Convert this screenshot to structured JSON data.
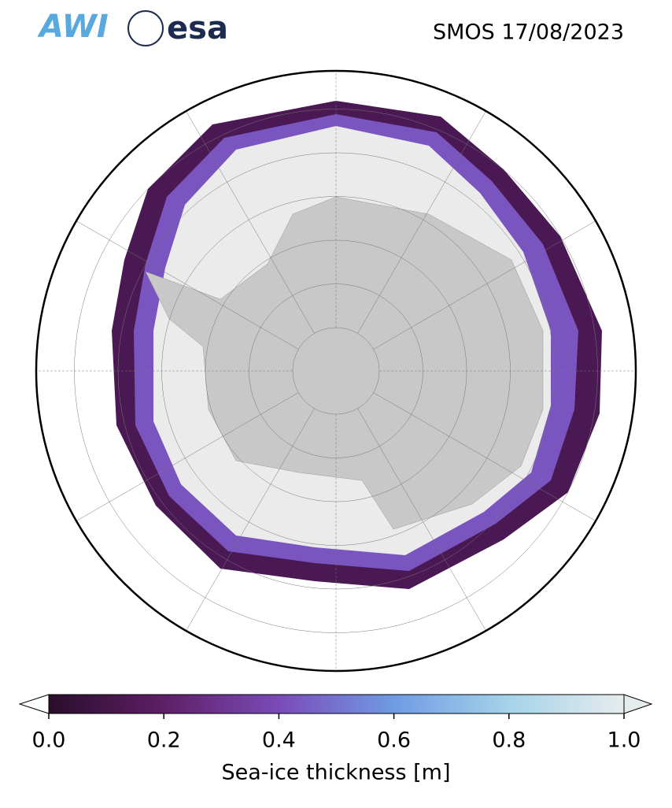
{
  "header": {
    "logos": [
      "AWI",
      "esa"
    ],
    "title": "SMOS 17/08/2023"
  },
  "colorbar": {
    "label": "Sea-ice thickness [m]",
    "lim": [
      0,
      1
    ],
    "ticks": [
      {
        "value": 0,
        "label": "0.0"
      },
      {
        "value": 0.2,
        "label": "0.2"
      },
      {
        "value": 0.4,
        "label": "0.4"
      },
      {
        "value": 0.6,
        "label": "0.6"
      },
      {
        "value": 0.8,
        "label": "0.8"
      },
      {
        "value": 1,
        "label": "1.0"
      }
    ],
    "colors": [
      "#2a0e2c",
      "#5e1f66",
      "#7a4bb8",
      "#6f9be4",
      "#a5d3e8",
      "#e6ecec"
    ]
  }
}
